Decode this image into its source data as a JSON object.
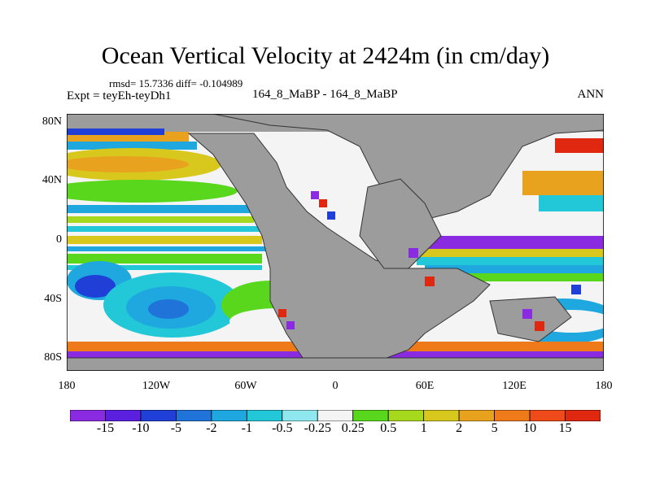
{
  "title": "Ocean Vertical Velocity at 2424m (in cm/day)",
  "stats": "rmsd= 15.7336 diff= -0.104989",
  "expt": "Expt = teyEh-teyDh1",
  "cases": "164_8_MaBP - 164_8_MaBP",
  "season": "ANN",
  "lat_ticks": [
    "80N",
    "40N",
    "0",
    "40S",
    "80S"
  ],
  "lon_ticks": [
    "180",
    "120W",
    "60W",
    "0",
    "60E",
    "120E",
    "180"
  ],
  "colorbar": {
    "labels": [
      "-15",
      "-10",
      "-5",
      "-2",
      "-1",
      "-0.5",
      "-0.25",
      "0.25",
      "0.5",
      "1",
      "2",
      "5",
      "10",
      "15"
    ],
    "colors": [
      "#8a2be2",
      "#5b1fe0",
      "#1f3fd6",
      "#1f73d9",
      "#1fa8e0",
      "#23c8d8",
      "#8ee8ee",
      "#f4f4f4",
      "#58d71c",
      "#a6d81e",
      "#d8c81e",
      "#e8a21e",
      "#ee7a1a",
      "#ee4a1a",
      "#e02810"
    ]
  },
  "colors": {
    "land": "#9c9c9c",
    "coast": "#333333"
  }
}
